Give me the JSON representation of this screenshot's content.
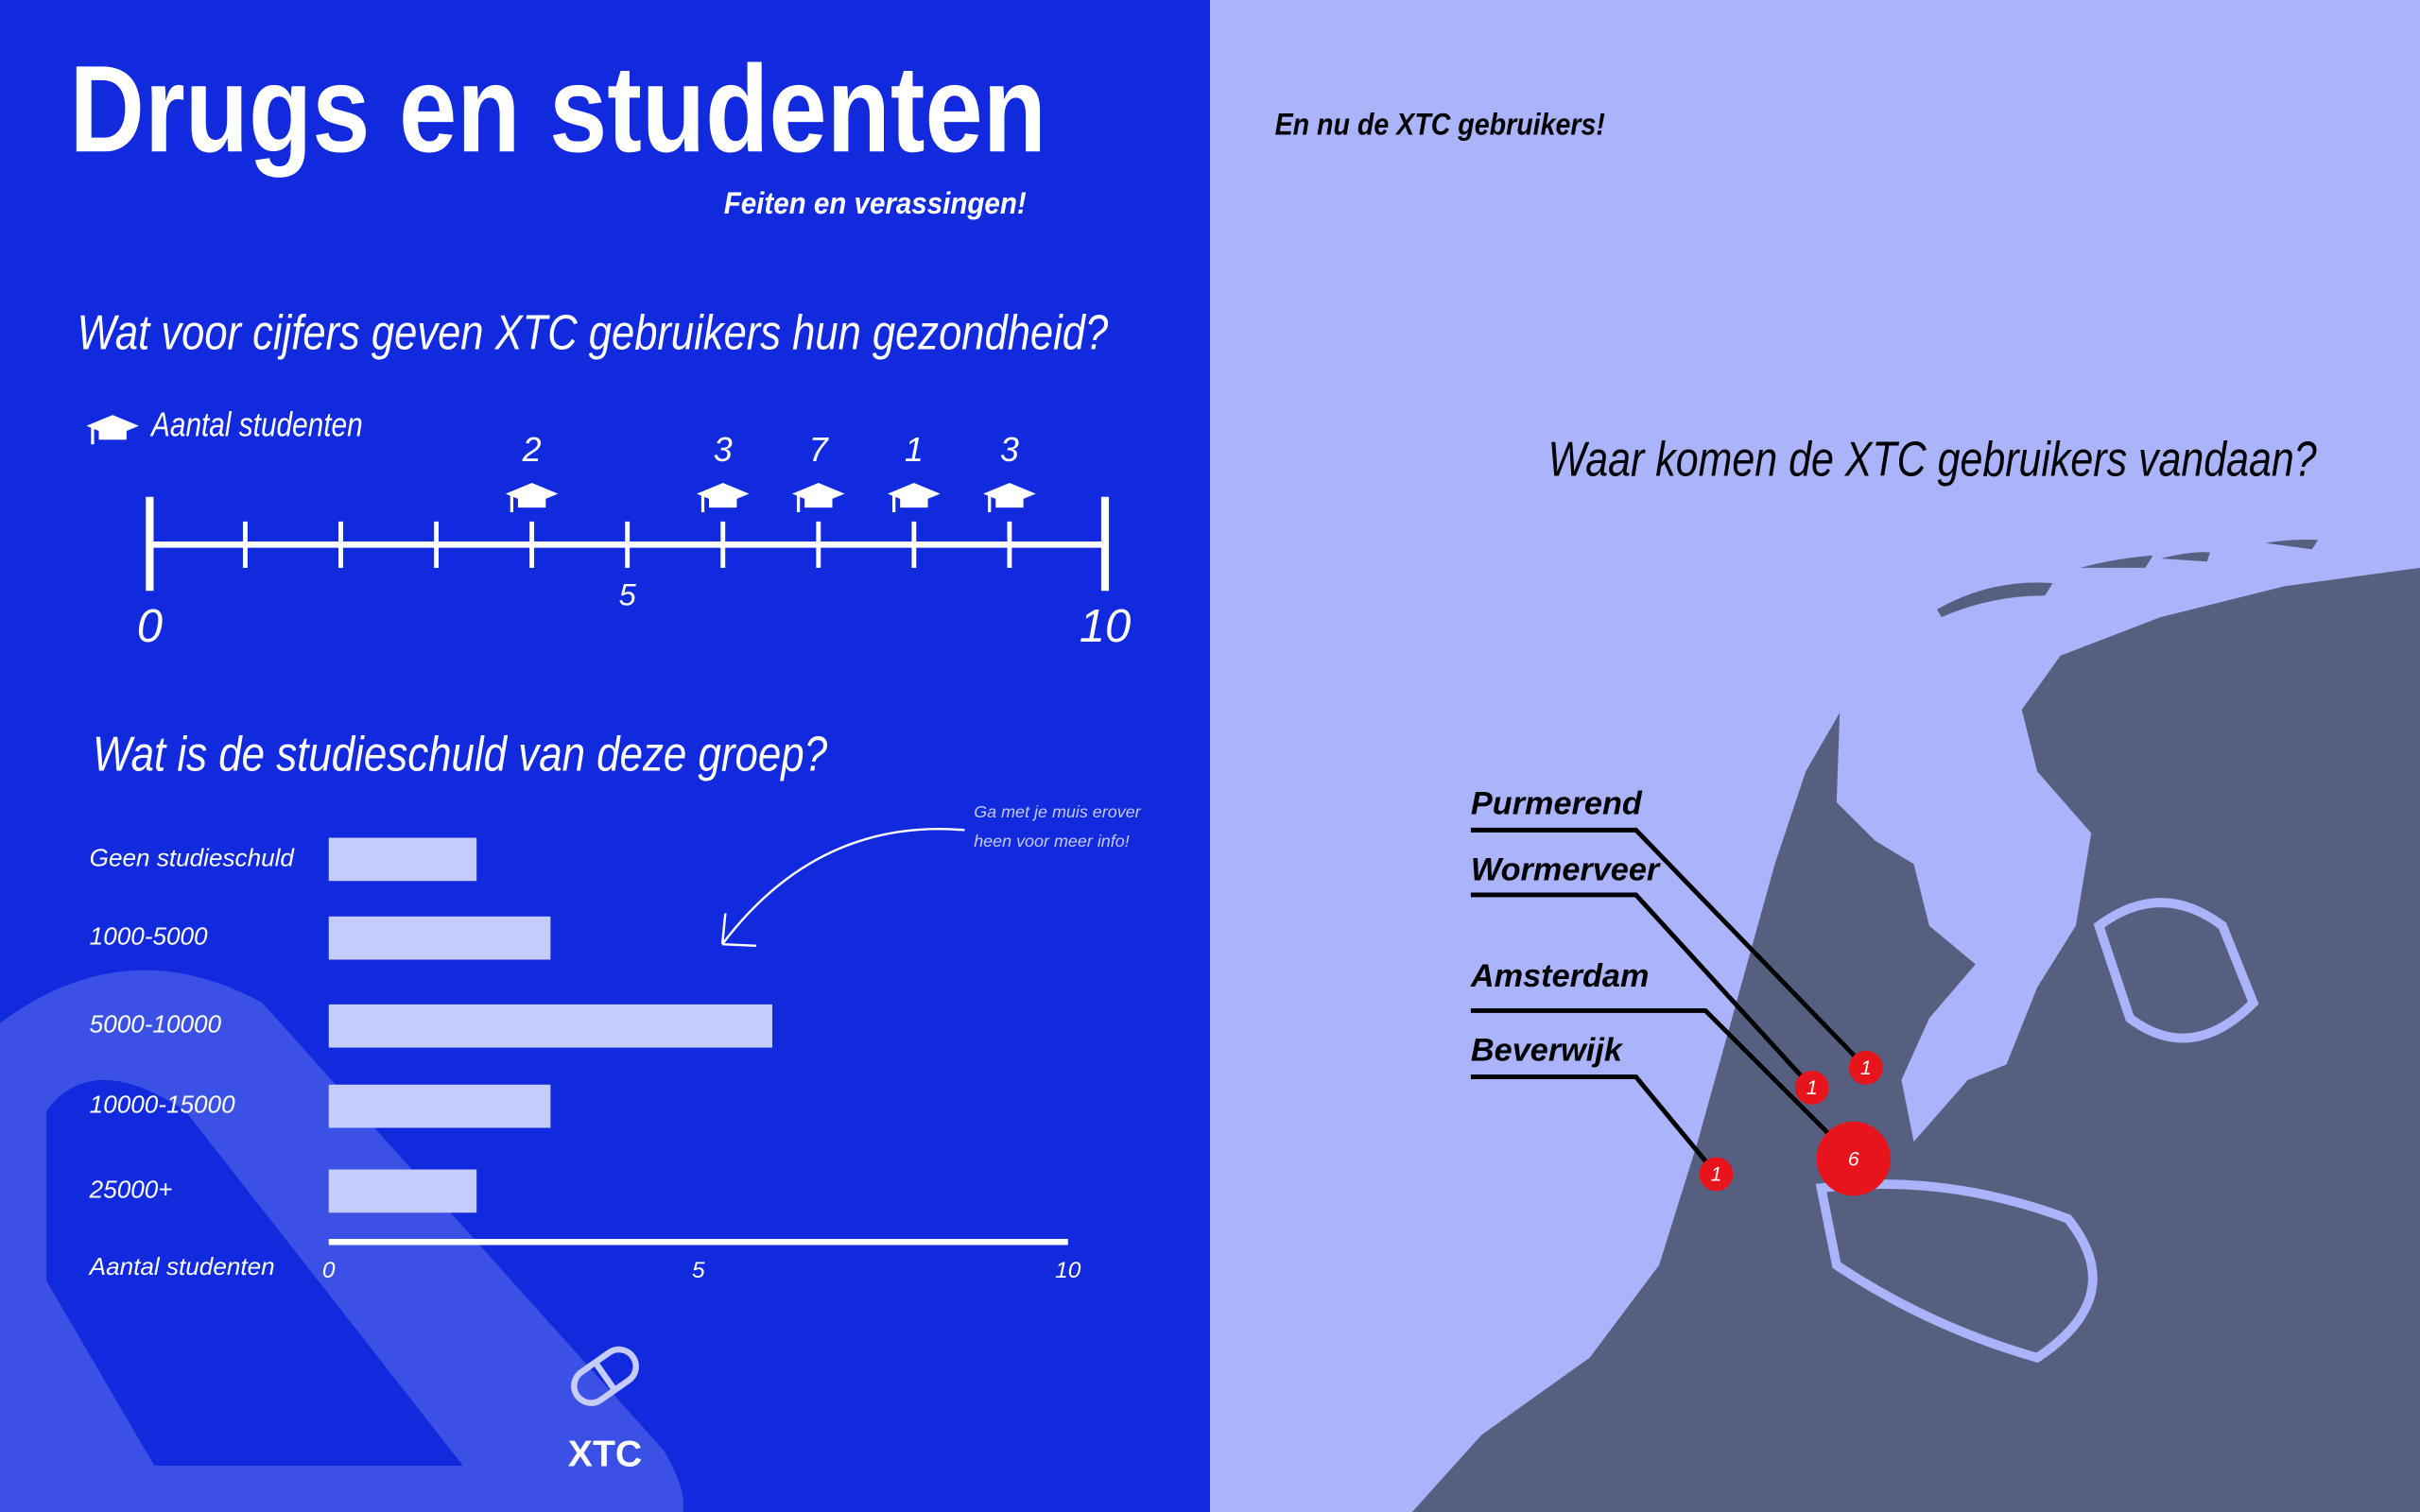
{
  "header": {
    "title": "Drugs en studenten",
    "subtitle": "Feiten en verassingen!",
    "right_heading": "En nu de XTC gebruikers!",
    "pill_label": "XTC"
  },
  "chart_data": [
    {
      "type": "dot",
      "title": "Wat voor cijfers geven XTC gebruikers hun gezondheid?",
      "legend": "Aantal studenten",
      "xlim": [
        0,
        10
      ],
      "xticks": [
        0,
        5,
        10
      ],
      "minor_xticks": [
        1,
        2,
        3,
        4,
        6,
        7,
        8,
        9
      ],
      "x": [
        4,
        6,
        7,
        8,
        9
      ],
      "values": [
        2,
        3,
        7,
        1,
        3
      ],
      "color": "#ffffff"
    },
    {
      "type": "bar",
      "title": "Wat is de studieschuld van deze groep?",
      "categories": [
        "Geen studieschuld",
        "1000-5000",
        "5000-10000",
        "10000-15000",
        "25000+"
      ],
      "values": [
        2,
        3,
        6,
        3,
        2
      ],
      "xlabel": "Aantal studenten",
      "xlim": [
        0,
        10
      ],
      "xticks": [
        0,
        5,
        10
      ],
      "color": "#c5cbfb",
      "note_lines": [
        "Ga met je muis erover",
        "heen voor meer info!"
      ]
    },
    {
      "type": "map",
      "title": "Waar komen de XTC gebruikers vandaan?",
      "categories": [
        "Purmerend",
        "Wormerveer",
        "Amsterdam",
        "Beverwijk"
      ],
      "values": [
        1,
        1,
        6,
        1
      ],
      "color": "#e8141c"
    }
  ]
}
